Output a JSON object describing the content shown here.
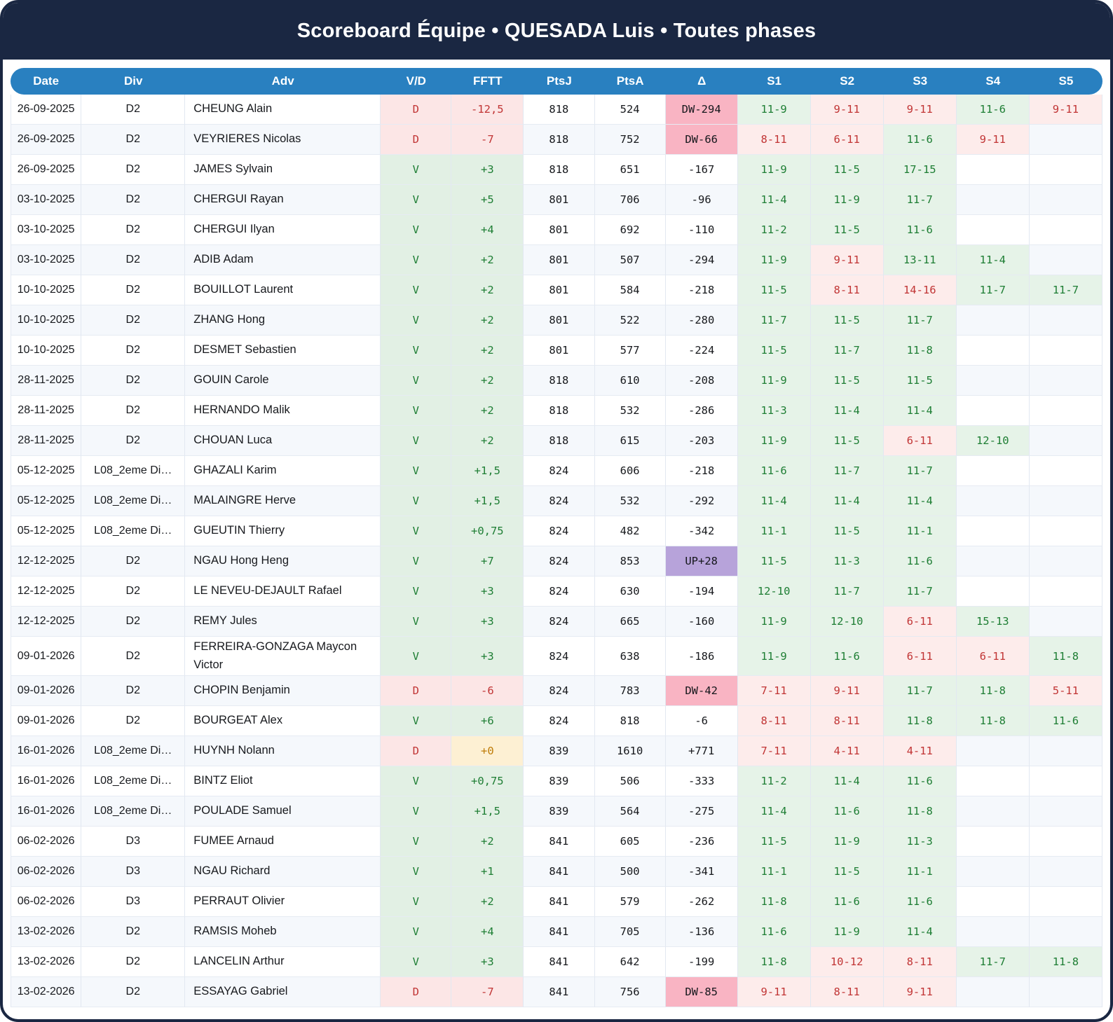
{
  "title": "Scoreboard Équipe • QUESADA Luis • Toutes phases",
  "colors": {
    "banner_bg": "#1a2742",
    "table_header_bg": "#2980c0",
    "win_text": "#1e7e34",
    "win_bg": "#e2f0e4",
    "loss_text": "#c13535",
    "loss_bg": "#fce6e6",
    "set_win_bg": "#e6f3e8",
    "set_loss_bg": "#fdeceb",
    "delta_down_bg": "#f9b4c3",
    "delta_up_bg": "#b7a3da",
    "neutral_warn_bg": "#fdf0d3",
    "neutral_warn_text": "#bf7d0a"
  },
  "table": {
    "columns": [
      "Date",
      "Div",
      "Adv",
      "V/D",
      "FFTT",
      "PtsJ",
      "PtsA",
      "Δ",
      "S1",
      "S2",
      "S3",
      "S4",
      "S5"
    ],
    "rows": [
      {
        "date": "26-09-2025",
        "div": "D2",
        "adv": "CHEUNG Alain",
        "vd": "D",
        "fftt": "-12,5",
        "ptsj": "818",
        "ptsa": "524",
        "delta": "DW-294",
        "sets": [
          "11-9",
          "9-11",
          "9-11",
          "11-6",
          "9-11"
        ]
      },
      {
        "date": "26-09-2025",
        "div": "D2",
        "adv": "VEYRIERES Nicolas",
        "vd": "D",
        "fftt": "-7",
        "ptsj": "818",
        "ptsa": "752",
        "delta": "DW-66",
        "sets": [
          "8-11",
          "6-11",
          "11-6",
          "9-11",
          ""
        ]
      },
      {
        "date": "26-09-2025",
        "div": "D2",
        "adv": "JAMES Sylvain",
        "vd": "V",
        "fftt": "+3",
        "ptsj": "818",
        "ptsa": "651",
        "delta": "-167",
        "sets": [
          "11-9",
          "11-5",
          "17-15",
          "",
          ""
        ]
      },
      {
        "date": "03-10-2025",
        "div": "D2",
        "adv": "CHERGUI Rayan",
        "vd": "V",
        "fftt": "+5",
        "ptsj": "801",
        "ptsa": "706",
        "delta": "-96",
        "sets": [
          "11-4",
          "11-9",
          "11-7",
          "",
          ""
        ]
      },
      {
        "date": "03-10-2025",
        "div": "D2",
        "adv": "CHERGUI Ilyan",
        "vd": "V",
        "fftt": "+4",
        "ptsj": "801",
        "ptsa": "692",
        "delta": "-110",
        "sets": [
          "11-2",
          "11-5",
          "11-6",
          "",
          ""
        ]
      },
      {
        "date": "03-10-2025",
        "div": "D2",
        "adv": "ADIB Adam",
        "vd": "V",
        "fftt": "+2",
        "ptsj": "801",
        "ptsa": "507",
        "delta": "-294",
        "sets": [
          "11-9",
          "9-11",
          "13-11",
          "11-4",
          ""
        ]
      },
      {
        "date": "10-10-2025",
        "div": "D2",
        "adv": "BOUILLOT Laurent",
        "vd": "V",
        "fftt": "+2",
        "ptsj": "801",
        "ptsa": "584",
        "delta": "-218",
        "sets": [
          "11-5",
          "8-11",
          "14-16",
          "11-7",
          "11-7"
        ]
      },
      {
        "date": "10-10-2025",
        "div": "D2",
        "adv": "ZHANG Hong",
        "vd": "V",
        "fftt": "+2",
        "ptsj": "801",
        "ptsa": "522",
        "delta": "-280",
        "sets": [
          "11-7",
          "11-5",
          "11-7",
          "",
          ""
        ]
      },
      {
        "date": "10-10-2025",
        "div": "D2",
        "adv": "DESMET Sebastien",
        "vd": "V",
        "fftt": "+2",
        "ptsj": "801",
        "ptsa": "577",
        "delta": "-224",
        "sets": [
          "11-5",
          "11-7",
          "11-8",
          "",
          ""
        ]
      },
      {
        "date": "28-11-2025",
        "div": "D2",
        "adv": "GOUIN Carole",
        "vd": "V",
        "fftt": "+2",
        "ptsj": "818",
        "ptsa": "610",
        "delta": "-208",
        "sets": [
          "11-9",
          "11-5",
          "11-5",
          "",
          ""
        ]
      },
      {
        "date": "28-11-2025",
        "div": "D2",
        "adv": "HERNANDO Malik",
        "vd": "V",
        "fftt": "+2",
        "ptsj": "818",
        "ptsa": "532",
        "delta": "-286",
        "sets": [
          "11-3",
          "11-4",
          "11-4",
          "",
          ""
        ]
      },
      {
        "date": "28-11-2025",
        "div": "D2",
        "adv": "CHOUAN Luca",
        "vd": "V",
        "fftt": "+2",
        "ptsj": "818",
        "ptsa": "615",
        "delta": "-203",
        "sets": [
          "11-9",
          "11-5",
          "6-11",
          "12-10",
          ""
        ]
      },
      {
        "date": "05-12-2025",
        "div": "L08_2eme Di…",
        "adv": "GHAZALI Karim",
        "vd": "V",
        "fftt": "+1,5",
        "ptsj": "824",
        "ptsa": "606",
        "delta": "-218",
        "sets": [
          "11-6",
          "11-7",
          "11-7",
          "",
          ""
        ]
      },
      {
        "date": "05-12-2025",
        "div": "L08_2eme Di…",
        "adv": "MALAINGRE Herve",
        "vd": "V",
        "fftt": "+1,5",
        "ptsj": "824",
        "ptsa": "532",
        "delta": "-292",
        "sets": [
          "11-4",
          "11-4",
          "11-4",
          "",
          ""
        ]
      },
      {
        "date": "05-12-2025",
        "div": "L08_2eme Di…",
        "adv": "GUEUTIN Thierry",
        "vd": "V",
        "fftt": "+0,75",
        "ptsj": "824",
        "ptsa": "482",
        "delta": "-342",
        "sets": [
          "11-1",
          "11-5",
          "11-1",
          "",
          ""
        ]
      },
      {
        "date": "12-12-2025",
        "div": "D2",
        "adv": "NGAU Hong Heng",
        "vd": "V",
        "fftt": "+7",
        "ptsj": "824",
        "ptsa": "853",
        "delta": "UP+28",
        "sets": [
          "11-5",
          "11-3",
          "11-6",
          "",
          ""
        ]
      },
      {
        "date": "12-12-2025",
        "div": "D2",
        "adv": "LE NEVEU-DEJAULT Rafael",
        "vd": "V",
        "fftt": "+3",
        "ptsj": "824",
        "ptsa": "630",
        "delta": "-194",
        "sets": [
          "12-10",
          "11-7",
          "11-7",
          "",
          ""
        ]
      },
      {
        "date": "12-12-2025",
        "div": "D2",
        "adv": "REMY Jules",
        "vd": "V",
        "fftt": "+3",
        "ptsj": "824",
        "ptsa": "665",
        "delta": "-160",
        "sets": [
          "11-9",
          "12-10",
          "6-11",
          "15-13",
          ""
        ]
      },
      {
        "date": "09-01-2026",
        "div": "D2",
        "adv": "FERREIRA-GONZAGA Maycon Victor",
        "vd": "V",
        "fftt": "+3",
        "ptsj": "824",
        "ptsa": "638",
        "delta": "-186",
        "sets": [
          "11-9",
          "11-6",
          "6-11",
          "6-11",
          "11-8"
        ]
      },
      {
        "date": "09-01-2026",
        "div": "D2",
        "adv": "CHOPIN Benjamin",
        "vd": "D",
        "fftt": "-6",
        "ptsj": "824",
        "ptsa": "783",
        "delta": "DW-42",
        "sets": [
          "7-11",
          "9-11",
          "11-7",
          "11-8",
          "5-11"
        ]
      },
      {
        "date": "09-01-2026",
        "div": "D2",
        "adv": "BOURGEAT Alex",
        "vd": "V",
        "fftt": "+6",
        "ptsj": "824",
        "ptsa": "818",
        "delta": "-6",
        "sets": [
          "8-11",
          "8-11",
          "11-8",
          "11-8",
          "11-6"
        ]
      },
      {
        "date": "16-01-2026",
        "div": "L08_2eme Di…",
        "adv": "HUYNH Nolann",
        "vd": "D",
        "fftt": "+0",
        "ptsj": "839",
        "ptsa": "1610",
        "delta": "+771",
        "sets": [
          "7-11",
          "4-11",
          "4-11",
          "",
          ""
        ]
      },
      {
        "date": "16-01-2026",
        "div": "L08_2eme Di…",
        "adv": "BINTZ Eliot",
        "vd": "V",
        "fftt": "+0,75",
        "ptsj": "839",
        "ptsa": "506",
        "delta": "-333",
        "sets": [
          "11-2",
          "11-4",
          "11-6",
          "",
          ""
        ]
      },
      {
        "date": "16-01-2026",
        "div": "L08_2eme Di…",
        "adv": "POULADE Samuel",
        "vd": "V",
        "fftt": "+1,5",
        "ptsj": "839",
        "ptsa": "564",
        "delta": "-275",
        "sets": [
          "11-4",
          "11-6",
          "11-8",
          "",
          ""
        ]
      },
      {
        "date": "06-02-2026",
        "div": "D3",
        "adv": "FUMEE Arnaud",
        "vd": "V",
        "fftt": "+2",
        "ptsj": "841",
        "ptsa": "605",
        "delta": "-236",
        "sets": [
          "11-5",
          "11-9",
          "11-3",
          "",
          ""
        ]
      },
      {
        "date": "06-02-2026",
        "div": "D3",
        "adv": "NGAU Richard",
        "vd": "V",
        "fftt": "+1",
        "ptsj": "841",
        "ptsa": "500",
        "delta": "-341",
        "sets": [
          "11-1",
          "11-5",
          "11-1",
          "",
          ""
        ]
      },
      {
        "date": "06-02-2026",
        "div": "D3",
        "adv": "PERRAUT Olivier",
        "vd": "V",
        "fftt": "+2",
        "ptsj": "841",
        "ptsa": "579",
        "delta": "-262",
        "sets": [
          "11-8",
          "11-6",
          "11-6",
          "",
          ""
        ]
      },
      {
        "date": "13-02-2026",
        "div": "D2",
        "adv": "RAMSIS Moheb",
        "vd": "V",
        "fftt": "+4",
        "ptsj": "841",
        "ptsa": "705",
        "delta": "-136",
        "sets": [
          "11-6",
          "11-9",
          "11-4",
          "",
          ""
        ]
      },
      {
        "date": "13-02-2026",
        "div": "D2",
        "adv": "LANCELIN Arthur",
        "vd": "V",
        "fftt": "+3",
        "ptsj": "841",
        "ptsa": "642",
        "delta": "-199",
        "sets": [
          "11-8",
          "10-12",
          "8-11",
          "11-7",
          "11-8"
        ]
      },
      {
        "date": "13-02-2026",
        "div": "D2",
        "adv": "ESSAYAG Gabriel",
        "vd": "D",
        "fftt": "-7",
        "ptsj": "841",
        "ptsa": "756",
        "delta": "DW-85",
        "sets": [
          "9-11",
          "8-11",
          "9-11",
          "",
          ""
        ]
      }
    ]
  }
}
